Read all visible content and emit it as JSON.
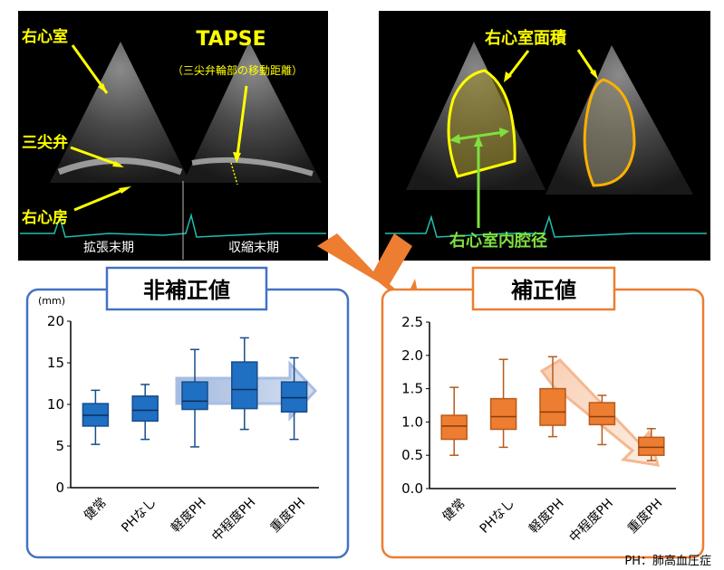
{
  "echo_left": {
    "title": "TAPSE",
    "subtitle": "（三尖弁輪部の移動距離）",
    "labels": {
      "ra_ventricle": "右心室",
      "tricuspid": "三尖弁",
      "ra_atrium": "右心房"
    },
    "captions": {
      "diastole": "拡張末期",
      "systole": "収縮末期"
    }
  },
  "echo_right": {
    "labels": {
      "area": "右心室面積",
      "diameter": "右心室内腔径"
    }
  },
  "colors": {
    "blue": "#1f6fc3",
    "orange": "#ed7d31",
    "yellow": "#ffff00",
    "green": "#7fe040"
  },
  "chart_data": [
    {
      "type": "box",
      "title": "非補正値",
      "ylabel": "(mm)",
      "ylim": [
        0,
        20
      ],
      "yticks": [
        "0",
        "5",
        "10",
        "15",
        "20"
      ],
      "categories": [
        "健常",
        "PHなし",
        "軽度PH",
        "中程度PH",
        "重度PH"
      ],
      "boxes": [
        {
          "min": 5.2,
          "q1": 7.4,
          "median": 8.7,
          "q3": 10.1,
          "max": 11.7
        },
        {
          "min": 5.8,
          "q1": 8.0,
          "median": 9.3,
          "q3": 11.0,
          "max": 12.4
        },
        {
          "min": 4.9,
          "q1": 9.4,
          "median": 10.4,
          "q3": 12.7,
          "max": 16.6
        },
        {
          "min": 7.0,
          "q1": 9.5,
          "median": 11.8,
          "q3": 15.1,
          "max": 18.0
        },
        {
          "min": 5.8,
          "q1": 9.1,
          "median": 10.8,
          "q3": 12.7,
          "max": 15.6
        }
      ]
    },
    {
      "type": "box",
      "title": "補正値",
      "ylim": [
        0,
        2.5
      ],
      "yticks": [
        "0.0",
        "0.5",
        "1.0",
        "1.5",
        "2.0",
        "2.5"
      ],
      "categories": [
        "健常",
        "PHなし",
        "軽度PH",
        "中程度PH",
        "重度PH"
      ],
      "boxes": [
        {
          "min": 0.5,
          "q1": 0.74,
          "median": 0.94,
          "q3": 1.1,
          "max": 1.52
        },
        {
          "min": 0.62,
          "q1": 0.89,
          "median": 1.08,
          "q3": 1.35,
          "max": 1.94
        },
        {
          "min": 0.78,
          "q1": 0.95,
          "median": 1.15,
          "q3": 1.5,
          "max": 1.98
        },
        {
          "min": 0.66,
          "q1": 0.96,
          "median": 1.08,
          "q3": 1.29,
          "max": 1.4
        },
        {
          "min": 0.42,
          "q1": 0.5,
          "median": 0.62,
          "q3": 0.77,
          "max": 0.9
        }
      ]
    }
  ],
  "footnote": "PH：肺高血圧症"
}
